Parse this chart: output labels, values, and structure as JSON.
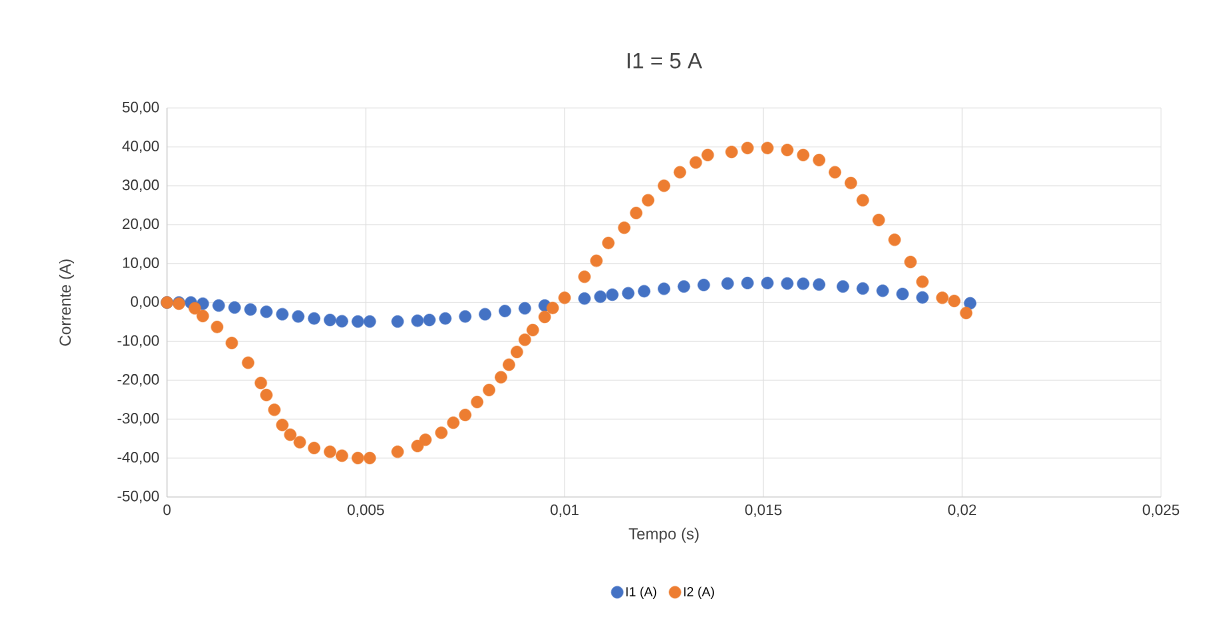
{
  "chart_data": {
    "type": "scatter",
    "title": "I1 = 5 A",
    "xlabel": "Tempo (s)",
    "ylabel": "Corrente (A)",
    "xlim": [
      0,
      0.025
    ],
    "ylim": [
      -50,
      50
    ],
    "xticks": [
      {
        "value": 0,
        "label": "0"
      },
      {
        "value": 0.005,
        "label": "0,005"
      },
      {
        "value": 0.01,
        "label": "0,01"
      },
      {
        "value": 0.015,
        "label": "0,015"
      },
      {
        "value": 0.02,
        "label": "0,02"
      },
      {
        "value": 0.025,
        "label": "0,025"
      }
    ],
    "yticks": [
      {
        "value": -50,
        "label": "-50,00"
      },
      {
        "value": -40,
        "label": "-40,00"
      },
      {
        "value": -30,
        "label": "-30,00"
      },
      {
        "value": -20,
        "label": "-20,00"
      },
      {
        "value": -10,
        "label": "-10,00"
      },
      {
        "value": 0,
        "label": "0,00"
      },
      {
        "value": 10,
        "label": "10,00"
      },
      {
        "value": 20,
        "label": "20,00"
      },
      {
        "value": 30,
        "label": "30,00"
      },
      {
        "value": 40,
        "label": "40,00"
      },
      {
        "value": 50,
        "label": "50,00"
      }
    ],
    "grid": true,
    "legend": "bottom",
    "marker": "circle",
    "series": [
      {
        "name": "I1 (A)",
        "color": "#4472c4",
        "x": [
          0,
          0.0003,
          0.0006,
          0.0009,
          0.0013,
          0.0017,
          0.0021,
          0.0025,
          0.0029,
          0.0033,
          0.0037,
          0.0041,
          0.0044,
          0.0048,
          0.0051,
          0.0058,
          0.0063,
          0.0066,
          0.007,
          0.0075,
          0.008,
          0.0085,
          0.009,
          0.0095,
          0.01,
          0.0105,
          0.0109,
          0.0112,
          0.0116,
          0.012,
          0.0125,
          0.013,
          0.0135,
          0.0141,
          0.0146,
          0.0151,
          0.0156,
          0.016,
          0.0164,
          0.017,
          0.0175,
          0.018,
          0.0185,
          0.019,
          0.0195,
          0.0199,
          0.0202
        ],
        "values": [
          0,
          0,
          0,
          -0.3,
          -0.8,
          -1.3,
          -1.8,
          -2.4,
          -3.0,
          -3.6,
          -4.1,
          -4.5,
          -4.8,
          -4.9,
          -4.9,
          -4.9,
          -4.7,
          -4.5,
          -4.1,
          -3.6,
          -3.0,
          -2.2,
          -1.5,
          -0.8,
          null,
          1.0,
          1.5,
          2.0,
          2.4,
          2.9,
          3.5,
          4.1,
          4.5,
          4.9,
          5.0,
          5.0,
          4.9,
          4.8,
          4.6,
          4.1,
          3.6,
          3.0,
          2.2,
          1.3,
          null,
          null,
          -0.2
        ]
      },
      {
        "name": "I2 (A)",
        "color": "#ed7d31",
        "x": [
          0,
          0.0003,
          0.0007,
          0.0009,
          0.00126,
          0.00163,
          0.00204,
          0.00236,
          0.0025,
          0.0027,
          0.0029,
          0.0031,
          0.00334,
          0.0037,
          0.0041,
          0.0044,
          0.0048,
          0.0051,
          0.0058,
          0.0063,
          0.0065,
          0.0069,
          0.0072,
          0.0075,
          0.0078,
          0.0081,
          0.0084,
          0.0086,
          0.0088,
          0.009,
          0.0092,
          0.0095,
          0.0097,
          0.01,
          0.0105,
          0.0108,
          0.0111,
          0.0115,
          0.0118,
          0.0121,
          0.0125,
          0.0129,
          0.0133,
          0.0136,
          0.0142,
          0.0146,
          0.0151,
          0.0156,
          0.016,
          0.0164,
          0.0168,
          0.0172,
          0.0175,
          0.0179,
          0.0183,
          0.0187,
          0.019,
          0.0195,
          0.0198,
          0.0201
        ],
        "values": [
          0,
          -0.3,
          -1.5,
          -3.5,
          -6.3,
          -10.4,
          -15.5,
          -20.7,
          -23.8,
          -27.6,
          -31.5,
          -34,
          -35.9,
          -37.4,
          -38.4,
          -39.4,
          -40,
          -40,
          -38.4,
          -36.9,
          -35.3,
          -33.5,
          -30.9,
          -28.9,
          -25.6,
          -22.5,
          -19.2,
          -16,
          -12.7,
          -9.6,
          -7.1,
          -3.7,
          -1.4,
          1.2,
          6.6,
          10.7,
          15.3,
          19.2,
          23,
          26.3,
          30,
          33.5,
          36,
          37.9,
          38.7,
          39.7,
          39.7,
          39.2,
          37.9,
          36.6,
          33.5,
          30.7,
          26.3,
          21.2,
          16.1,
          10.4,
          5.3,
          1.2,
          0.4,
          -2.7
        ]
      }
    ]
  }
}
